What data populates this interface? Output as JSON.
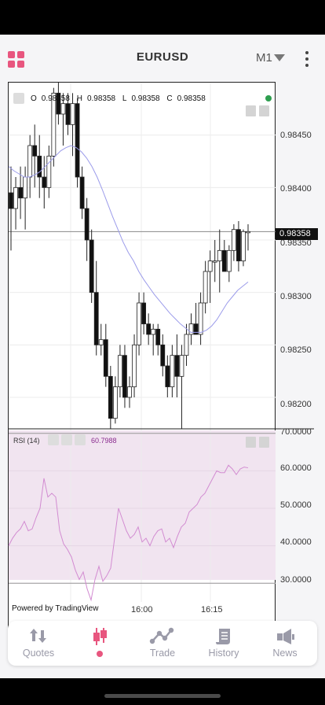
{
  "header": {
    "title": "EURUSD",
    "timeframe": "M1"
  },
  "chart_header": {
    "o_label": "O",
    "o_value": "0.98358",
    "h_label": "H",
    "h_value": "0.98358",
    "l_label": "L",
    "l_value": "0.98358",
    "c_label": "C",
    "c_value": "0.98358"
  },
  "current_price": "0.98358",
  "price_axis": [
    "0.98450",
    "0.98400",
    "0.98350",
    "0.98300",
    "0.98250",
    "0.98200"
  ],
  "rsi_axis": [
    "70.0000",
    "60.0000",
    "50.0000",
    "40.0000",
    "30.0000"
  ],
  "rsi": {
    "label": "RSI (14)",
    "value": "60.7988"
  },
  "time_axis": [
    "16:00",
    "16:15"
  ],
  "branding": "Powered by TradingView",
  "tabs": [
    {
      "label": "Quotes",
      "icon": "quotes-icon",
      "active": false
    },
    {
      "label": "",
      "icon": "chart-icon",
      "active": true
    },
    {
      "label": "Trade",
      "icon": "trade-icon",
      "active": false
    },
    {
      "label": "History",
      "icon": "history-icon",
      "active": false
    },
    {
      "label": "News",
      "icon": "news-icon",
      "active": false
    }
  ],
  "colors": {
    "accent": "#e8567f",
    "ma_line": "#9b9bea",
    "rsi_line": "#d28bd1",
    "rsi_fill": "#f1e4f0",
    "live": "#2e9e4f"
  },
  "chart_data": [
    {
      "type": "candlestick",
      "symbol": "EURUSD",
      "x_ticks": [
        "16:00",
        "16:15"
      ],
      "ylim": [
        0.9817,
        0.985
      ],
      "y_ticks": [
        0.9845,
        0.984,
        0.9835,
        0.983,
        0.9825,
        0.982
      ],
      "last_price": 0.98358,
      "candles": [
        [
          0.98395,
          0.9842,
          0.9834,
          0.9838
        ],
        [
          0.9838,
          0.9841,
          0.9836,
          0.984
        ],
        [
          0.984,
          0.9842,
          0.9837,
          0.9839
        ],
        [
          0.9839,
          0.9842,
          0.9836,
          0.9841
        ],
        [
          0.9841,
          0.9845,
          0.9839,
          0.9844
        ],
        [
          0.9844,
          0.9846,
          0.984,
          0.9843
        ],
        [
          0.9843,
          0.9845,
          0.9839,
          0.9841
        ],
        [
          0.9841,
          0.9843,
          0.9838,
          0.984
        ],
        [
          0.984,
          0.9844,
          0.9839,
          0.9843
        ],
        [
          0.9843,
          0.98495,
          0.9842,
          0.9849
        ],
        [
          0.9849,
          0.985,
          0.9846,
          0.9847
        ],
        [
          0.9847,
          0.9849,
          0.9844,
          0.9848
        ],
        [
          0.9848,
          0.9849,
          0.9845,
          0.9846
        ],
        [
          0.9846,
          0.9849,
          0.9843,
          0.9848
        ],
        [
          0.9848,
          0.98485,
          0.984,
          0.9841
        ],
        [
          0.9841,
          0.9842,
          0.9837,
          0.9838
        ],
        [
          0.9838,
          0.9839,
          0.9833,
          0.9835
        ],
        [
          0.9835,
          0.9836,
          0.9829,
          0.983
        ],
        [
          0.983,
          0.9833,
          0.9824,
          0.9825
        ],
        [
          0.9825,
          0.9827,
          0.9824,
          0.98255
        ],
        [
          0.98255,
          0.9827,
          0.9821,
          0.9822
        ],
        [
          0.9822,
          0.9823,
          0.9817,
          0.9818
        ],
        [
          0.9818,
          0.9822,
          0.98175,
          0.9821
        ],
        [
          0.9821,
          0.9825,
          0.982,
          0.9824
        ],
        [
          0.9824,
          0.9825,
          0.9819,
          0.982
        ],
        [
          0.982,
          0.9822,
          0.9819,
          0.9821
        ],
        [
          0.9821,
          0.9826,
          0.982,
          0.9825
        ],
        [
          0.9825,
          0.983,
          0.9824,
          0.9829
        ],
        [
          0.9829,
          0.983,
          0.9826,
          0.9827
        ],
        [
          0.9827,
          0.9828,
          0.9825,
          0.9826
        ],
        [
          0.9826,
          0.9827,
          0.9824,
          0.98265
        ],
        [
          0.98265,
          0.9827,
          0.9824,
          0.9825
        ],
        [
          0.9825,
          0.9826,
          0.9822,
          0.9823
        ],
        [
          0.9823,
          0.9824,
          0.982,
          0.9821
        ],
        [
          0.9821,
          0.9825,
          0.982,
          0.9824
        ],
        [
          0.9824,
          0.9826,
          0.982,
          0.9822
        ],
        [
          0.9822,
          0.9825,
          0.9817,
          0.9824
        ],
        [
          0.9824,
          0.9827,
          0.9823,
          0.9826
        ],
        [
          0.9826,
          0.9828,
          0.9825,
          0.9827
        ],
        [
          0.9827,
          0.9829,
          0.9826,
          0.9826
        ],
        [
          0.9826,
          0.983,
          0.9825,
          0.9829
        ],
        [
          0.9829,
          0.9833,
          0.9828,
          0.9832
        ],
        [
          0.9832,
          0.9834,
          0.9829,
          0.9833
        ],
        [
          0.9833,
          0.9835,
          0.9831,
          0.9833
        ],
        [
          0.9833,
          0.9836,
          0.983,
          0.9834
        ],
        [
          0.9834,
          0.9835,
          0.9832,
          0.9832
        ],
        [
          0.9832,
          0.98345,
          0.9831,
          0.9834
        ],
        [
          0.9834,
          0.98365,
          0.9833,
          0.9836
        ],
        [
          0.9836,
          0.98368,
          0.9832,
          0.9833
        ],
        [
          0.9833,
          0.9836,
          0.98325,
          0.98358
        ],
        [
          0.98358,
          0.98365,
          0.9834,
          0.98358
        ]
      ],
      "moving_average": [
        0.9842,
        0.98416,
        0.98413,
        0.9841,
        0.9841,
        0.98412,
        0.98415,
        0.9842,
        0.98425,
        0.9843,
        0.98435,
        0.98438,
        0.9844,
        0.98438,
        0.98434,
        0.98428,
        0.9842,
        0.9841,
        0.98398,
        0.98385,
        0.98372,
        0.9836,
        0.98348,
        0.98338,
        0.9833,
        0.9832,
        0.98312,
        0.98305,
        0.98298,
        0.98292,
        0.98286,
        0.9828,
        0.98275,
        0.9827,
        0.98266,
        0.98262,
        0.98262,
        0.98262,
        0.98264,
        0.98268,
        0.98274,
        0.98282,
        0.9829,
        0.98296,
        0.98302,
        0.98306,
        0.9831
      ]
    },
    {
      "type": "line",
      "name": "RSI (14)",
      "ylim": [
        25,
        71
      ],
      "y_ticks": [
        70,
        60,
        50,
        40,
        30
      ],
      "values": [
        40.0,
        42.0,
        43.5,
        44.5,
        46.5,
        44.0,
        44.5,
        47.5,
        50.0,
        58.0,
        53.0,
        54.0,
        53.0,
        44.0,
        40.5,
        39.0,
        37.0,
        33.5,
        31.0,
        33.0,
        28.5,
        25.5,
        31.0,
        34.5,
        30.5,
        32.0,
        34.0,
        42.0,
        50.0,
        47.0,
        44.0,
        42.0,
        43.0,
        45.0,
        41.0,
        42.0,
        40.0,
        42.5,
        44.0,
        44.5,
        41.0,
        42.0,
        39.5,
        42.5,
        45.0,
        46.0,
        49.0,
        50.0,
        51.0,
        53.0,
        54.0,
        56.0,
        58.0,
        60.0,
        59.5,
        59.5,
        61.5,
        60.5,
        59.0,
        60.5,
        61.0,
        60.8
      ]
    }
  ]
}
